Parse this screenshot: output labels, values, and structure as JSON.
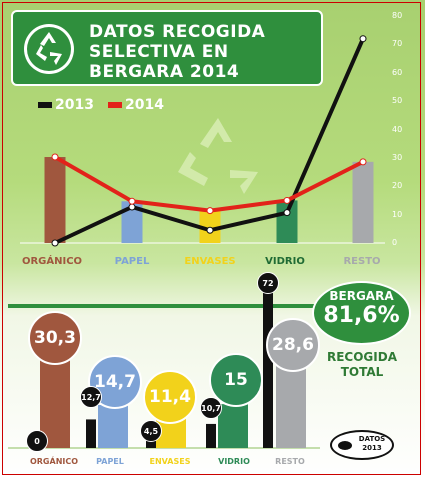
{
  "header": {
    "title_line1": "DATOS RECOGIDA",
    "title_line2": "SELECTIVA EN",
    "title_line3": "BERGARA 2014"
  },
  "legend": {
    "label_2013": "2013",
    "label_2014": "2014"
  },
  "colors": {
    "green": "#2f8f3d",
    "series_2013": "#111111",
    "series_2014": "#e2231a",
    "organico": "#a0573e",
    "papel": "#7ea3d6",
    "envases": "#f2d21b",
    "vidrio": "#2e8b57",
    "resto": "#a7a9ac"
  },
  "chart_data": [
    {
      "type": "line",
      "categories": [
        "ORGÁNICO",
        "PAPEL",
        "ENVASES",
        "VIDRIO",
        "RESTO"
      ],
      "category_colors": [
        "#a0573e",
        "#7ea3d6",
        "#f2d21b",
        "#2e8b57",
        "#a7a9ac"
      ],
      "series": [
        {
          "name": "2013",
          "values": [
            0,
            12.7,
            4.5,
            10.7,
            72
          ]
        },
        {
          "name": "2014",
          "values": [
            30.3,
            14.7,
            11.4,
            15,
            28.6
          ]
        }
      ],
      "ylim": [
        0,
        80
      ],
      "yticks": [
        0,
        10,
        20,
        30,
        40,
        50,
        60,
        70,
        80
      ],
      "bars_series": "2014",
      "grid": false,
      "legend_position": "top-left"
    },
    {
      "type": "bar",
      "categories": [
        "ORGÁNICO",
        "PAPEL",
        "ENVASES",
        "VIDRIO",
        "RESTO"
      ],
      "series": [
        {
          "name": "2013",
          "values": [
            0,
            12.7,
            4.5,
            10.7,
            72
          ]
        },
        {
          "name": "2014",
          "values": [
            30.3,
            14.7,
            11.4,
            15,
            28.6
          ]
        }
      ],
      "labels_2013": [
        "0",
        "12,7",
        "4,5",
        "10,7",
        "72"
      ],
      "labels_2014": [
        "30,3",
        "14,7",
        "11,4",
        "15",
        "28,6"
      ]
    }
  ],
  "summary": {
    "name": "BERGARA",
    "value": "81,6%",
    "caption_line1": "RECOGIDA",
    "caption_line2": "TOTAL"
  },
  "datos_badge": {
    "line1": "DATOS",
    "line2": "2013"
  }
}
